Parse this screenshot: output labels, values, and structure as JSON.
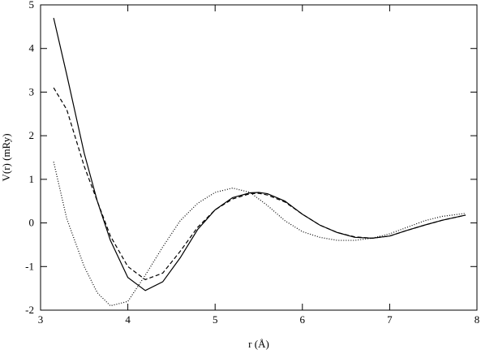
{
  "chart_data": {
    "type": "line",
    "xlabel": "r (Å)",
    "ylabel": "V(r) (mRy)",
    "x": [
      3.15,
      3.3,
      3.5,
      3.65,
      3.8,
      4.0,
      4.2,
      4.4,
      4.6,
      4.8,
      5.0,
      5.2,
      5.4,
      5.5,
      5.6,
      5.8,
      6.0,
      6.2,
      6.4,
      6.6,
      6.8,
      7.0,
      7.2,
      7.4,
      7.6,
      7.87
    ],
    "series": [
      {
        "color": "#000000",
        "dash": "solid",
        "values": [
          4.7,
          3.4,
          1.6,
          0.5,
          -0.4,
          -1.25,
          -1.55,
          -1.35,
          -0.8,
          -0.15,
          0.3,
          0.58,
          0.69,
          0.7,
          0.67,
          0.5,
          0.2,
          -0.05,
          -0.22,
          -0.33,
          -0.35,
          -0.3,
          -0.17,
          -0.05,
          0.06,
          0.18
        ]
      },
      {
        "color": "#000000",
        "dash": "dashed",
        "values": [
          3.1,
          2.6,
          1.3,
          0.5,
          -0.3,
          -1.0,
          -1.3,
          -1.15,
          -0.65,
          -0.1,
          0.3,
          0.55,
          0.67,
          0.68,
          0.64,
          0.48,
          0.2,
          -0.05,
          -0.22,
          -0.32,
          -0.35,
          -0.3,
          -0.17,
          -0.05,
          0.06,
          0.18
        ]
      },
      {
        "color": "#000000",
        "dash": "dotted",
        "values": [
          1.4,
          0.1,
          -1.0,
          -1.6,
          -1.9,
          -1.8,
          -1.2,
          -0.55,
          0.05,
          0.45,
          0.7,
          0.8,
          0.7,
          0.55,
          0.4,
          0.05,
          -0.2,
          -0.33,
          -0.4,
          -0.4,
          -0.35,
          -0.25,
          -0.1,
          0.05,
          0.15,
          0.22
        ]
      }
    ],
    "xlim": [
      3,
      8
    ],
    "xticks": [
      3,
      4,
      5,
      6,
      7,
      8
    ],
    "ylim": [
      -2,
      5
    ],
    "yticks": [
      -2,
      -1,
      0,
      1,
      2,
      3,
      4,
      5
    ]
  }
}
